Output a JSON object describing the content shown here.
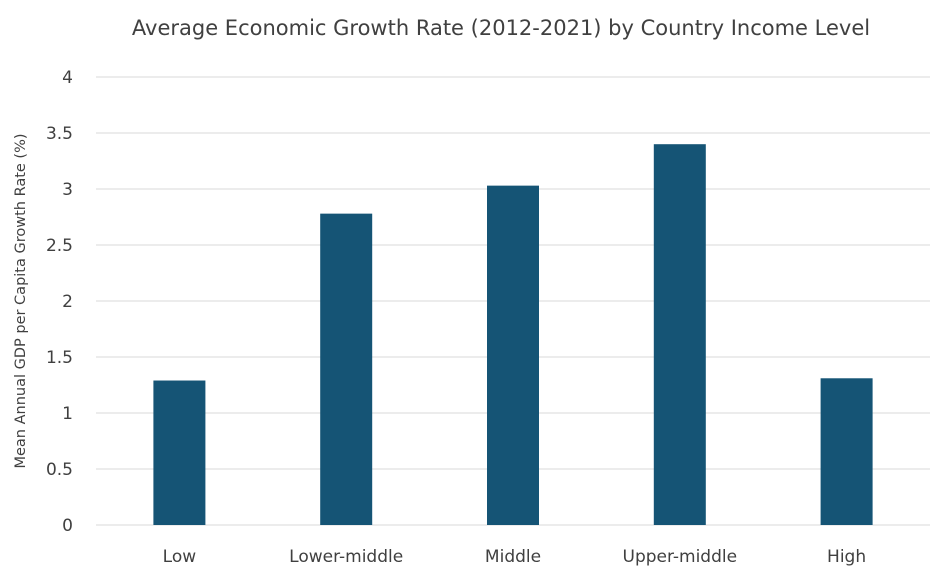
{
  "chart_data": {
    "type": "bar",
    "title": "Average Economic Growth Rate (2012-2021) by Country Income Level",
    "xlabel": "",
    "ylabel": "Mean Annual GDP per Capita Growth Rate (%)",
    "categories": [
      "Low",
      "Lower-middle",
      "Middle",
      "Upper-middle",
      "High"
    ],
    "values": [
      1.29,
      2.78,
      3.03,
      3.4,
      1.31
    ],
    "ylim": [
      0,
      4
    ],
    "yticks": [
      0,
      0.5,
      1,
      1.5,
      2,
      2.5,
      3,
      3.5,
      4
    ],
    "ytick_labels": [
      "0",
      "0.5",
      "1",
      "1.5",
      "2",
      "2.5",
      "3",
      "3.5",
      "4"
    ],
    "grid": true,
    "legend": "none",
    "colors": {
      "bar": "#155475",
      "grid": "#d9d9d9",
      "text": "#404040"
    }
  }
}
